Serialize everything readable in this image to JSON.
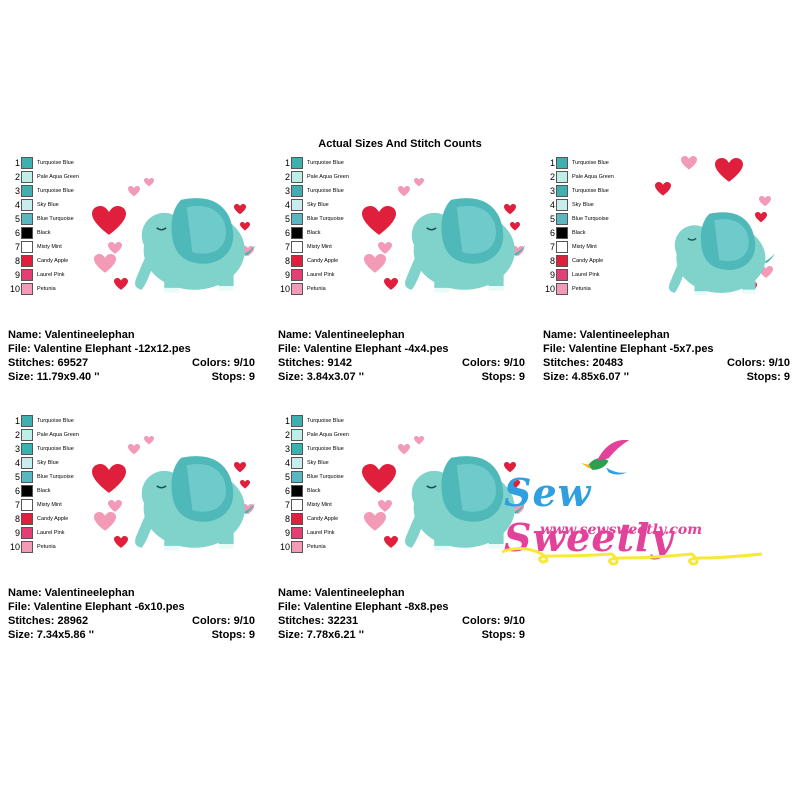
{
  "header": {
    "title": "Actual Sizes And Stitch Counts"
  },
  "legend": [
    {
      "num": "1",
      "name": "Turquoise Blue",
      "color": "#3fb0b0"
    },
    {
      "num": "2",
      "name": "Pale Aqua Green",
      "color": "#bfeee6"
    },
    {
      "num": "3",
      "name": "Turquoise Blue",
      "color": "#3fb0b0"
    },
    {
      "num": "4",
      "name": "Sky Blue",
      "color": "#c9ecef"
    },
    {
      "num": "5",
      "name": "Blue Turquoise",
      "color": "#5ab7c2"
    },
    {
      "num": "6",
      "name": "Black",
      "color": "#000000"
    },
    {
      "num": "7",
      "name": "Misty Mint",
      "color": "#ffffff"
    },
    {
      "num": "8",
      "name": "Candy Apple",
      "color": "#e01f3d"
    },
    {
      "num": "9",
      "name": "Laurel Pink",
      "color": "#e43f74"
    },
    {
      "num": "10",
      "name": "Petunia",
      "color": "#f29ab6"
    }
  ],
  "designs": [
    {
      "name": "Name: Valentineelephan",
      "file": "File: Valentine Elephant -12x12.pes",
      "stitches": "Stitches: 69527",
      "colors": "Colors: 9/10",
      "size": "Size: 11.79x9.40 ''",
      "stops": "Stops: 9"
    },
    {
      "name": "Name: Valentineelephan",
      "file": "File: Valentine Elephant -4x4.pes",
      "stitches": "Stitches: 9142",
      "colors": "Colors: 9/10",
      "size": "Size: 3.84x3.07 ''",
      "stops": "Stops: 9"
    },
    {
      "name": "Name: Valentineelephan",
      "file": "File: Valentine Elephant -5x7.pes",
      "stitches": "Stitches: 20483",
      "colors": "Colors: 9/10",
      "size": "Size: 4.85x6.07 ''",
      "stops": "Stops: 9"
    },
    {
      "name": "Name: Valentineelephan",
      "file": "File: Valentine Elephant -6x10.pes",
      "stitches": "Stitches: 28962",
      "colors": "Colors: 9/10",
      "size": "Size: 7.34x5.86 ''",
      "stops": "Stops: 9"
    },
    {
      "name": "Name: Valentineelephan",
      "file": "File: Valentine Elephant -8x8.pes",
      "stitches": "Stitches: 32231",
      "colors": "Colors: 9/10",
      "size": "Size: 7.78x6.21 ''",
      "stops": "Stops: 9"
    }
  ],
  "logo": {
    "brand_a": "Sew",
    "brand_b": "Sweetly",
    "url": "www.sewsweetly.com"
  }
}
